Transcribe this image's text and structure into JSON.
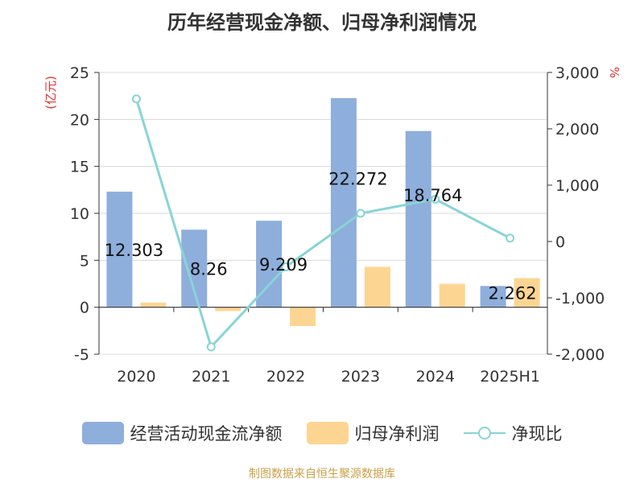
{
  "chart_data": {
    "type": "bar",
    "title": "历年经营现金净额、归母净利润情况",
    "categories": [
      "2020",
      "2021",
      "2022",
      "2023",
      "2024",
      "2025H1"
    ],
    "y_left": {
      "unit": "(亿元)",
      "ticks": [
        25,
        20,
        15,
        10,
        5,
        0,
        -5
      ],
      "range": [
        -5,
        25
      ]
    },
    "y_right": {
      "unit": "%",
      "ticks": [
        "3,000",
        "2,000",
        "1,000",
        "0",
        "-1,000",
        "-2,000"
      ],
      "range": [
        -2000,
        3000
      ]
    },
    "series": [
      {
        "name": "经营活动现金流净额",
        "kind": "bar",
        "color": "#8eaedc",
        "values": [
          12.303,
          8.26,
          9.209,
          22.272,
          18.764,
          2.262
        ],
        "labels": [
          "12.303",
          "8.26",
          "9.209",
          "22.272",
          "18.764",
          "2.262"
        ]
      },
      {
        "name": "归母净利润",
        "kind": "bar",
        "color": "#fdd592",
        "values": [
          0.5,
          -0.4,
          -2.0,
          4.3,
          2.5,
          3.1
        ]
      },
      {
        "name": "净现比",
        "kind": "line",
        "color": "#88d4d6",
        "axis": "right",
        "values": [
          2530,
          -1870,
          -450,
          500,
          750,
          60
        ]
      }
    ],
    "source": "制图数据来自恒生聚源数据库"
  }
}
